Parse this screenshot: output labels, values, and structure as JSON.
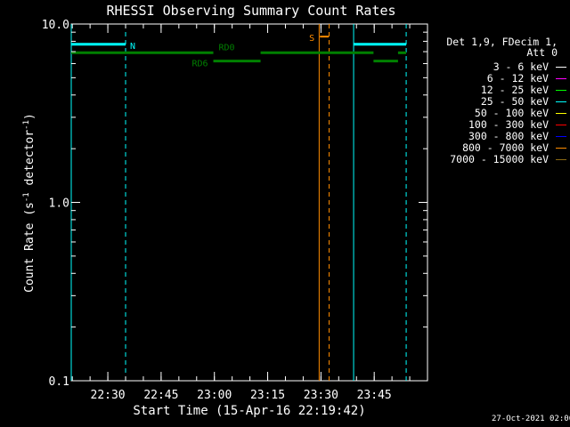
{
  "chart_data": {
    "type": "line",
    "title": "RHESSI Observing Summary Count Rates",
    "xlabel": "Start Time (15-Apr-16 22:19:42)",
    "ylabel": "Count Rate (s^-1 detector^-1)",
    "ylabel_parts": {
      "main": "Count Rate (s",
      "sup1": "-1",
      "mid": " detector",
      "sup2": "-1",
      "end": ")"
    },
    "yscale": "log",
    "ylim": [
      0.1,
      10.0
    ],
    "yticks": [
      {
        "value": 0.1,
        "label": "0.1"
      },
      {
        "value": 1.0,
        "label": "1.0"
      },
      {
        "value": 10.0,
        "label": "10.0"
      }
    ],
    "xlim_minutes": [
      0,
      100.3
    ],
    "xticks": [
      {
        "label": "22:30",
        "minute": 10.3
      },
      {
        "label": "22:45",
        "minute": 25.3
      },
      {
        "label": "23:00",
        "minute": 40.3
      },
      {
        "label": "23:15",
        "minute": 55.3
      },
      {
        "label": "23:30",
        "minute": 70.3
      },
      {
        "label": "23:45",
        "minute": 85.3
      }
    ],
    "legend": {
      "header": [
        "Det 1,9, FDecim 1,",
        "Att 0"
      ],
      "entries": [
        {
          "label": "3 - 6 keV",
          "color": "#ffffff"
        },
        {
          "label": "6 - 12 keV",
          "color": "#ff00ff"
        },
        {
          "label": "12 - 25 keV",
          "color": "#00ff00"
        },
        {
          "label": "25 - 50 keV",
          "color": "#00ffff"
        },
        {
          "label": "50 - 100 keV",
          "color": "#ffff00"
        },
        {
          "label": "100 - 300 keV",
          "color": "#ff0000"
        },
        {
          "label": "300 - 800 keV",
          "color": "#0000ff"
        },
        {
          "label": "800 - 7000 keV",
          "color": "#ff8c00"
        },
        {
          "label": "7000 - 15000 keV",
          "color": "#8b6914"
        }
      ]
    },
    "annotations": [
      {
        "kind": "night",
        "label": "N",
        "color": "#00ffff",
        "bars": [
          {
            "x0": 0,
            "x1": 15.3,
            "y": 7.7
          },
          {
            "x0": 79.5,
            "x1": 94.3,
            "y": 7.7
          }
        ],
        "solid_lines": [
          0,
          79.5
        ],
        "dashed_lines": [
          15.3,
          94.3
        ]
      },
      {
        "kind": "saa",
        "label": "S",
        "color": "#ff8c00",
        "bars": [
          {
            "x0": 70.0,
            "x1": 72.5,
            "y": 8.5
          }
        ],
        "solid_lines": [
          69.8
        ],
        "dashed_lines": [
          72.6
        ]
      },
      {
        "kind": "decimation",
        "label": "RD0",
        "color": "#008000",
        "bars": [
          {
            "x0": 0,
            "x1": 40.0,
            "y": 6.9
          },
          {
            "x0": 53.3,
            "x1": 85.1,
            "y": 6.9
          },
          {
            "x0": 92.0,
            "x1": 94.3,
            "y": 6.9
          }
        ]
      },
      {
        "kind": "decimation",
        "label": "RD6",
        "color": "#008000",
        "bars": [
          {
            "x0": 40.0,
            "x1": 53.3,
            "y": 6.2
          },
          {
            "x0": 85.1,
            "x1": 92.0,
            "y": 6.2
          }
        ]
      }
    ]
  },
  "footer": {
    "timestamp": "27-Oct-2021 02:06"
  }
}
